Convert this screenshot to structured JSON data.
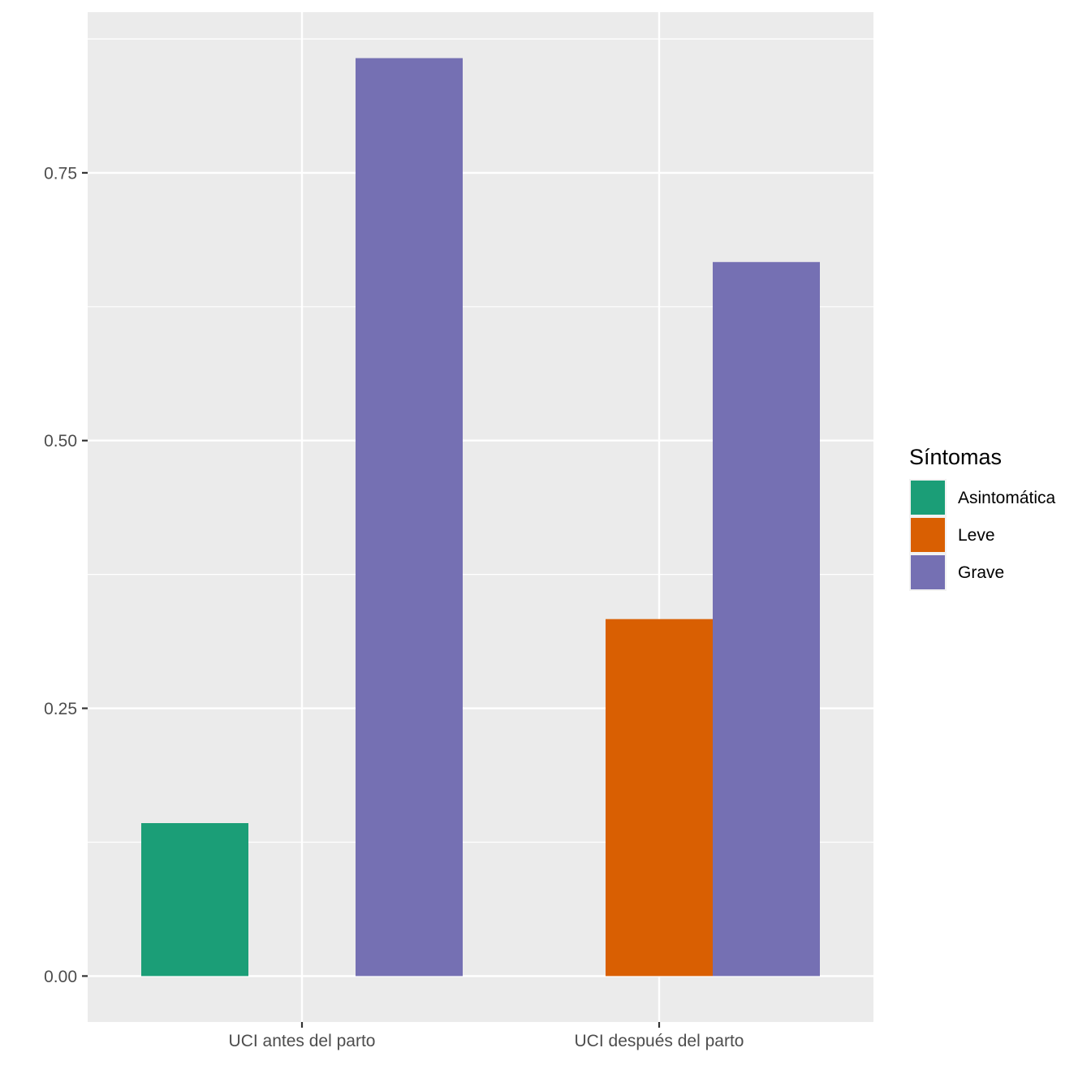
{
  "chart_data": {
    "type": "bar",
    "categories": [
      "UCI antes del parto",
      "UCI después del parto"
    ],
    "series": [
      {
        "name": "Asintomática",
        "color": "#1b9e77",
        "values": [
          0.1428,
          0
        ]
      },
      {
        "name": "Leve",
        "color": "#d95f02",
        "values": [
          0,
          0.3333
        ]
      },
      {
        "name": "Grave",
        "color": "#7570b3",
        "values": [
          0.8571,
          0.6667
        ]
      }
    ],
    "ylim": [
      -0.0429,
      0.9
    ],
    "yticks": [
      0.0,
      0.25,
      0.5,
      0.75
    ],
    "ytick_labels": [
      "0.00",
      "0.25",
      "0.50",
      "0.75"
    ],
    "xlabel": "",
    "ylabel": "",
    "legend": {
      "title": "Síntomas",
      "position": "right"
    },
    "grid": true,
    "panel_color": "#ebebeb"
  }
}
